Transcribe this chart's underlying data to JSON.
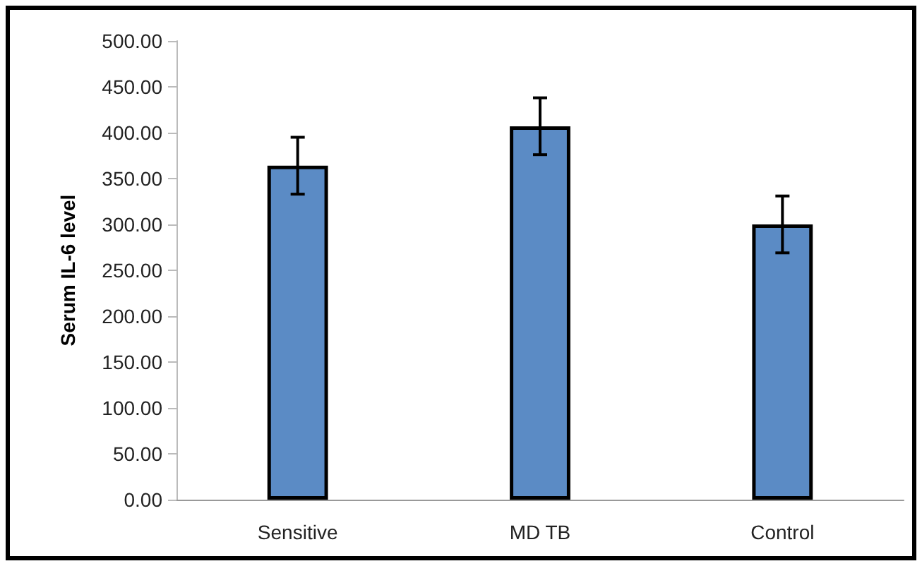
{
  "chart_data": {
    "type": "bar",
    "ylabel": "Serum IL-6 level",
    "categories": [
      "Sensitive",
      "MD TB",
      "Control"
    ],
    "values": [
      364,
      407,
      300
    ],
    "errors": [
      31,
      31,
      31
    ],
    "color": "#5b8bc5",
    "ylim": [
      0,
      500
    ],
    "yticks": [
      {
        "value": 0,
        "label": "0.00"
      },
      {
        "value": 50,
        "label": "50.00"
      },
      {
        "value": 100,
        "label": "100.00"
      },
      {
        "value": 150,
        "label": "150.00"
      },
      {
        "value": 200,
        "label": "200.00"
      },
      {
        "value": 250,
        "label": "250.00"
      },
      {
        "value": 300,
        "label": "300.00"
      },
      {
        "value": 350,
        "label": "350.00"
      },
      {
        "value": 400,
        "label": "400.00"
      },
      {
        "value": 450,
        "label": "450.00"
      },
      {
        "value": 500,
        "label": "500.00"
      }
    ],
    "grid": false
  }
}
